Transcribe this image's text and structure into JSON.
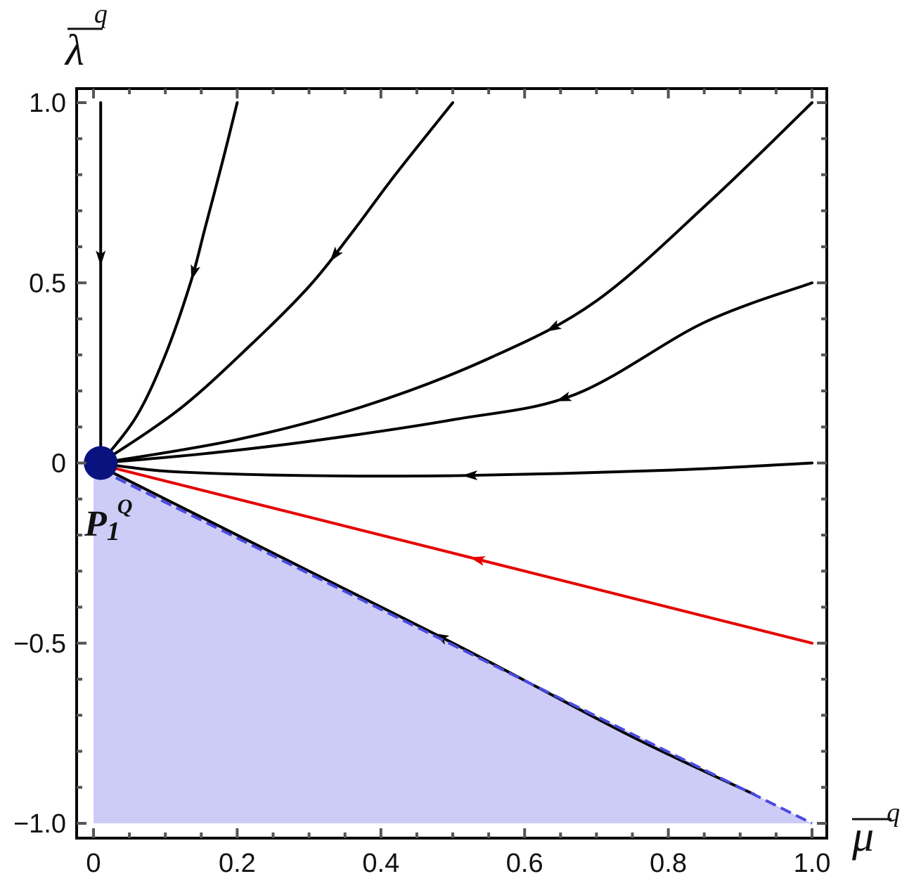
{
  "chart_data": {
    "type": "line",
    "title": "",
    "xlabel": {
      "base": "μ",
      "sup": "q"
    },
    "ylabel": {
      "base": "λ",
      "sup": "q"
    },
    "xlim": [
      0,
      1
    ],
    "ylim": [
      -1,
      1
    ],
    "x_ticks": [
      "0",
      "0.2",
      "0.4",
      "0.6",
      "0.8",
      "1.0"
    ],
    "y_ticks": [
      "1.0",
      "0.5",
      "0",
      "−0.5",
      "−1.0"
    ],
    "grid": false,
    "colors": {
      "trajectory": "#000000",
      "separatrix": "#e60000",
      "region_fill": "#ccccf7",
      "boundary_line": "#4a4ae0",
      "fixed_point": "#0a1280"
    },
    "fixed_point": {
      "name": "P",
      "sub": "1",
      "sup": "Q",
      "x": 0.01,
      "y": 0.0
    },
    "shaded_region": {
      "vertices": [
        [
          0,
          0
        ],
        [
          1,
          -1
        ],
        [
          0,
          -1
        ]
      ]
    },
    "boundary": {
      "style": "dashed",
      "points": [
        [
          0.01,
          -0.02
        ],
        [
          1.0,
          -1.0
        ]
      ]
    },
    "series": [
      {
        "color": "black",
        "arrow_at": 0.43,
        "points": [
          [
            0.01,
            1.0
          ],
          [
            0.01,
            0.75
          ],
          [
            0.01,
            0.5
          ],
          [
            0.01,
            0.25
          ],
          [
            0.01,
            0.0
          ]
        ]
      },
      {
        "color": "black",
        "arrow_at": 0.45,
        "points": [
          [
            0.2,
            1.0
          ],
          [
            0.18,
            0.84
          ],
          [
            0.155,
            0.65
          ],
          [
            0.135,
            0.5
          ],
          [
            0.1,
            0.3
          ],
          [
            0.06,
            0.13
          ],
          [
            0.01,
            0.0
          ]
        ]
      },
      {
        "color": "black",
        "arrow_at": 0.38,
        "points": [
          [
            0.5,
            1.0
          ],
          [
            0.42,
            0.8
          ],
          [
            0.36,
            0.64
          ],
          [
            0.3,
            0.49
          ],
          [
            0.22,
            0.33
          ],
          [
            0.12,
            0.15
          ],
          [
            0.01,
            0.0
          ]
        ]
      },
      {
        "color": "black",
        "arrow_at": 0.42,
        "points": [
          [
            1.0,
            1.0
          ],
          [
            0.86,
            0.73
          ],
          [
            0.7,
            0.45
          ],
          [
            0.55,
            0.29
          ],
          [
            0.38,
            0.16
          ],
          [
            0.2,
            0.065
          ],
          [
            0.01,
            0.0
          ]
        ]
      },
      {
        "color": "black",
        "arrow_at": 0.37,
        "points": [
          [
            1.0,
            0.5
          ],
          [
            0.85,
            0.39
          ],
          [
            0.67,
            0.19
          ],
          [
            0.5,
            0.12
          ],
          [
            0.3,
            0.06
          ],
          [
            0.15,
            0.025
          ],
          [
            0.01,
            0.0
          ]
        ]
      },
      {
        "color": "black",
        "arrow_at": 0.48,
        "points": [
          [
            1.0,
            0.0
          ],
          [
            0.8,
            -0.02
          ],
          [
            0.51,
            -0.035
          ],
          [
            0.3,
            -0.035
          ],
          [
            0.12,
            -0.025
          ],
          [
            0.05,
            -0.012
          ],
          [
            0.01,
            0.0
          ]
        ]
      },
      {
        "color": "red",
        "arrow_at": 0.47,
        "points": [
          [
            1.0,
            -0.5
          ],
          [
            0.52,
            -0.26
          ],
          [
            0.01,
            -0.005
          ]
        ]
      },
      {
        "color": "black",
        "arrow_at": 0.48,
        "points": [
          [
            0.92,
            -0.92
          ],
          [
            0.75,
            -0.76
          ],
          [
            0.52,
            -0.52
          ],
          [
            0.3,
            -0.3
          ],
          [
            0.12,
            -0.12
          ],
          [
            0.04,
            -0.04
          ],
          [
            0.01,
            -0.01
          ]
        ]
      }
    ]
  }
}
